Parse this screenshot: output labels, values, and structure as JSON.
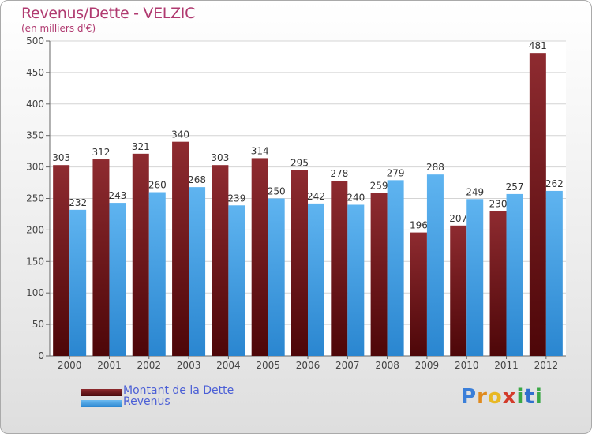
{
  "title": "Revenus/Dette - VELZIC",
  "subtitle": "(en milliers d'€)",
  "chart_data": {
    "type": "bar",
    "categories": [
      "2000",
      "2001",
      "2002",
      "2003",
      "2004",
      "2005",
      "2006",
      "2007",
      "2008",
      "2009",
      "2010",
      "2011",
      "2012"
    ],
    "series": [
      {
        "name": "Montant de la Dette",
        "values": [
          303,
          312,
          321,
          340,
          303,
          314,
          295,
          278,
          259,
          196,
          207,
          230,
          481
        ],
        "color": "#7a1e22"
      },
      {
        "name": "Revenus",
        "values": [
          232,
          243,
          260,
          268,
          239,
          250,
          242,
          240,
          279,
          288,
          249,
          257,
          262
        ],
        "color": "#4aa3e8"
      }
    ],
    "ylim": [
      0,
      500
    ],
    "yticks": [
      0,
      50,
      100,
      150,
      200,
      250,
      300,
      350,
      400,
      450,
      500
    ],
    "grid": true,
    "legend": "bottom-left"
  },
  "legend": {
    "debt_label": "Montant de la Dette",
    "revenue_label": "Revenus"
  },
  "logo": {
    "letters": [
      "P",
      "r",
      "o",
      "x",
      "i",
      "t",
      "i"
    ],
    "colors": [
      "#3b7fd9",
      "#e08a1e",
      "#e8b824",
      "#d33b2a",
      "#3aa845",
      "#2f6fce",
      "#3aa845"
    ]
  }
}
